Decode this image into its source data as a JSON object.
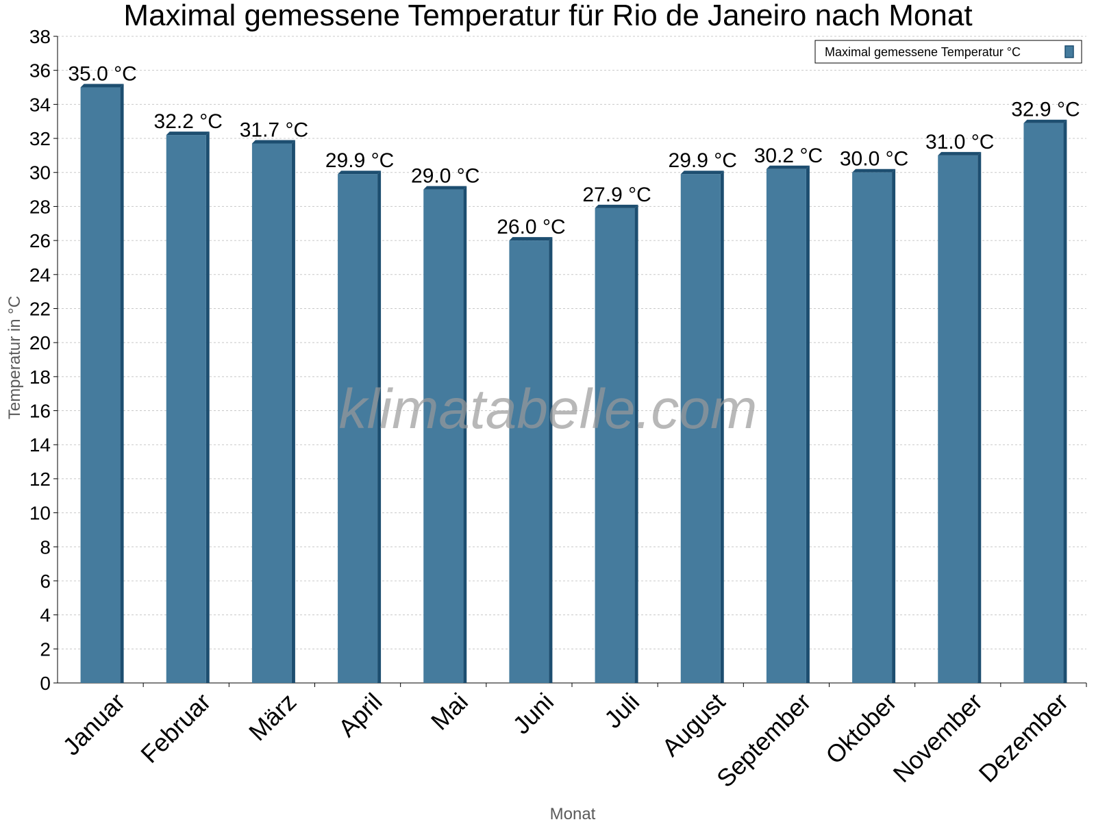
{
  "chart_data": {
    "type": "bar",
    "title": "Maximal gemessene Temperatur für Rio de Janeiro nach Monat",
    "xlabel": "Monat",
    "ylabel": "Temperatur in °C",
    "categories": [
      "Januar",
      "Februar",
      "März",
      "April",
      "Mai",
      "Juni",
      "Juli",
      "August",
      "September",
      "Oktober",
      "November",
      "Dezember"
    ],
    "series": [
      {
        "name": "Maximal gemessene Temperatur °C",
        "values": [
          35.0,
          32.2,
          31.7,
          29.9,
          29.0,
          26.0,
          27.9,
          29.9,
          30.2,
          30.0,
          31.0,
          32.9
        ],
        "labels": [
          "35.0 °C",
          "32.2 °C",
          "31.7 °C",
          "29.9 °C",
          "29.0 °C",
          "26.0 °C",
          "27.9 °C",
          "29.9 °C",
          "30.2 °C",
          "30.0 °C",
          "31.0 °C",
          "32.9 °C"
        ],
        "color": "#457b9d",
        "shade_color": "#1d4e70"
      }
    ],
    "ylim": [
      0,
      38
    ],
    "ytick_step": 2,
    "grid": true,
    "legend_position": "top-right",
    "watermark": "klimatabelle.com"
  }
}
